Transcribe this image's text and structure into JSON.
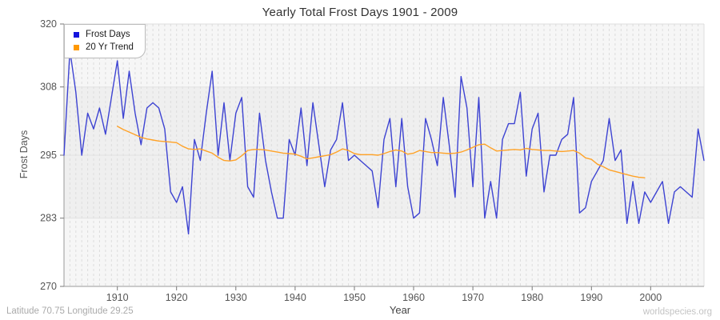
{
  "title": "Yearly Total Frost Days 1901 - 2009",
  "legend": [
    {
      "label": "Frost Days",
      "color": "#1414dd"
    },
    {
      "label": "20 Yr Trend",
      "color": "#ff9900"
    }
  ],
  "footer": {
    "left": "Latitude 70.75 Longitude 29.25",
    "right": "worldspecies.org"
  },
  "colors": {
    "frost_line": "#3d43d2",
    "trend_line": "#ffa227",
    "band_light": "#f6f6f6",
    "band_dark": "#efefef",
    "grid_vertical": "#dcdcdc",
    "grid_horizontal": "#e2e2e2",
    "axis": "#999999",
    "frame_light": "#dddddd",
    "tick_text": "#555555",
    "title_text": "#333333"
  },
  "chart_data": {
    "type": "line",
    "title": "Yearly Total Frost Days 1901 - 2009",
    "xlabel": "Year",
    "ylabel": "Frost Days",
    "xlim": [
      1901,
      2009
    ],
    "ylim": [
      270,
      320
    ],
    "yticks": [
      270,
      283,
      295,
      308,
      320
    ],
    "xticks": [
      1910,
      1920,
      1930,
      1940,
      1950,
      1960,
      1970,
      1980,
      1990,
      2000
    ],
    "grid": {
      "vertical": "yearly-dashed",
      "horizontal_at": [
        283,
        295,
        308
      ]
    },
    "legend_position": "top-left",
    "bands": [
      {
        "from": 270,
        "to": 283,
        "color": "#f6f6f6"
      },
      {
        "from": 283,
        "to": 308,
        "color": "#efefef"
      },
      {
        "from": 308,
        "to": 320,
        "color": "#f6f6f6"
      }
    ],
    "series": [
      {
        "name": "Frost Days",
        "color": "#3d43d2",
        "x_start": 1901,
        "values": [
          295,
          315,
          307,
          295,
          303,
          300,
          304,
          299,
          306,
          313,
          302,
          311,
          303,
          297,
          304,
          305,
          304,
          300,
          288,
          286,
          289,
          280,
          298,
          294,
          303,
          311,
          295,
          305,
          294,
          303,
          306,
          289,
          287,
          303,
          294,
          288,
          283,
          283,
          298,
          295,
          304,
          293,
          305,
          297,
          289,
          296,
          298,
          305,
          294,
          295,
          294,
          293,
          292,
          285,
          298,
          302,
          289,
          302,
          289,
          283,
          284,
          302,
          298,
          293,
          306,
          297,
          287,
          310,
          304,
          289,
          306,
          283,
          290,
          283,
          298,
          301,
          301,
          307,
          291,
          300,
          303,
          288,
          295,
          295,
          298,
          299,
          306,
          284,
          285,
          290,
          292,
          294,
          302,
          294,
          296,
          282,
          290,
          282,
          288,
          286,
          288,
          290,
          282,
          288,
          289,
          288,
          287,
          300,
          294
        ]
      },
      {
        "name": "20 Yr Trend",
        "color": "#ffa227",
        "x_start": 1910,
        "values": [
          300.5,
          299.9,
          299.4,
          298.9,
          298.4,
          298.1,
          297.9,
          297.7,
          297.6,
          297.5,
          297.4,
          296.7,
          296.2,
          296.1,
          296.2,
          295.8,
          295.4,
          294.6,
          294.0,
          293.9,
          294.1,
          294.9,
          295.9,
          296.1,
          296.1,
          296.0,
          295.8,
          295.6,
          295.4,
          295.3,
          295.2,
          294.8,
          294.3,
          294.5,
          294.7,
          294.9,
          295.1,
          295.6,
          296.2,
          295.9,
          295.3,
          295.1,
          295.1,
          295.1,
          295.0,
          295.3,
          295.7,
          296.0,
          295.8,
          295.2,
          295.4,
          295.9,
          295.7,
          295.5,
          295.5,
          295.4,
          295.3,
          295.4,
          295.6,
          296.0,
          296.5,
          297.0,
          297.1,
          296.4,
          295.8,
          295.9,
          296.0,
          296.1,
          296.0,
          296.3,
          296.1,
          296.0,
          295.9,
          295.9,
          295.8,
          295.7,
          295.8,
          295.9,
          295.4,
          294.5,
          294.2,
          293.3,
          292.8,
          292.2,
          291.9,
          291.6,
          291.3,
          291.0,
          290.8,
          290.7
        ]
      }
    ]
  }
}
